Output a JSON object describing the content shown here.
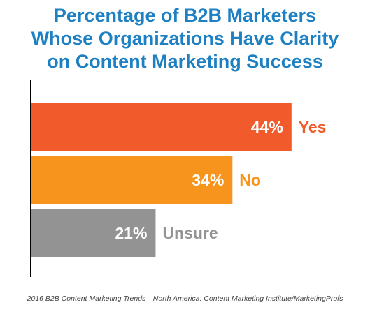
{
  "chart_data": {
    "type": "bar",
    "orientation": "horizontal",
    "title_lines": [
      "Percentage of B2B Marketers",
      "Whose Organizations Have Clarity",
      "on Content Marketing Success"
    ],
    "categories": [
      "Yes",
      "No",
      "Unsure"
    ],
    "values": [
      44,
      34,
      21
    ],
    "value_labels": [
      "44%",
      "34%",
      "21%"
    ],
    "colors": [
      "#f15a2b",
      "#f7941d",
      "#939393"
    ],
    "xlim": [
      0,
      50
    ],
    "grid": false,
    "legend": "none"
  },
  "source": "2016 B2B Content Marketing Trends—North America: Content Marketing Institute/MarketingProfs",
  "colors": {
    "title": "#1d80c3",
    "axis": "#000000",
    "source_text": "#444444"
  }
}
